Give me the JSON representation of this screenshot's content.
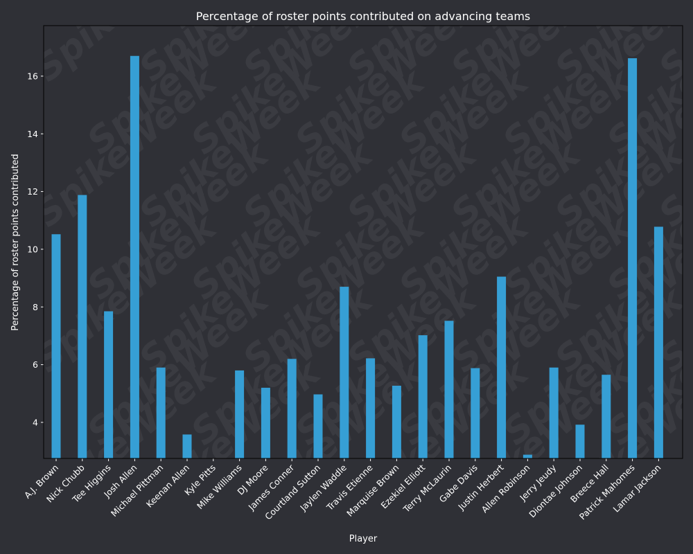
{
  "chart_data": {
    "type": "bar",
    "title": "Percentage of roster points contributed on advancing teams",
    "xlabel": "Player",
    "ylabel": "Percentage of roster points contributed",
    "ylim": [
      2.75,
      17.75
    ],
    "yticks": [
      4,
      6,
      8,
      10,
      12,
      14,
      16
    ],
    "grid": false,
    "legend": "none",
    "bar_color": "#369fd5",
    "background_color": "#2f3036",
    "watermark": "SpikeWeek",
    "categories": [
      "A.J. Brown",
      "Nick Chubb",
      "Tee Higgins",
      "Josh Allen",
      "Michael Pittman",
      "Keenan Allen",
      "Kyle Pitts",
      "Mike Williams",
      "DJ Moore",
      "James Conner",
      "Courtland Sutton",
      "Jaylen Waddle",
      "Travis Etienne",
      "Marquise Brown",
      "Ezekiel Elliott",
      "Terry McLaurin",
      "Gabe Davis",
      "Justin Herbert",
      "Allen Robinson",
      "Jerry Jeudy",
      "Diontae Johnson",
      "Breece Hall",
      "Patrick Mahomes",
      "Lamar Jackson"
    ],
    "values": [
      10.52,
      11.88,
      7.85,
      16.7,
      5.9,
      3.58,
      2.7,
      5.8,
      5.2,
      6.2,
      4.97,
      8.7,
      6.22,
      5.27,
      7.02,
      7.52,
      5.88,
      9.05,
      2.88,
      5.9,
      3.92,
      5.65,
      16.62,
      10.78
    ]
  }
}
